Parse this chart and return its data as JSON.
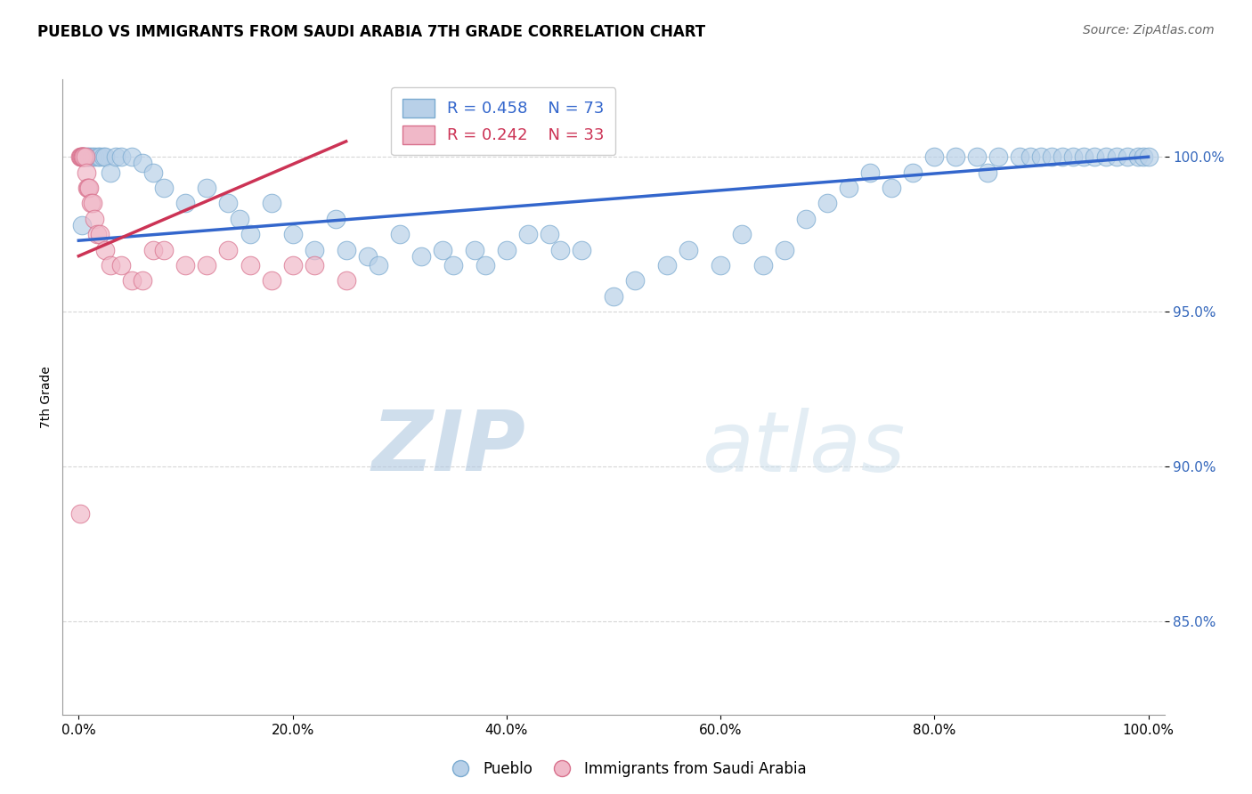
{
  "title": "PUEBLO VS IMMIGRANTS FROM SAUDI ARABIA 7TH GRADE CORRELATION CHART",
  "source": "Source: ZipAtlas.com",
  "ylabel": "7th Grade",
  "watermark_zip": "ZIP",
  "watermark_atlas": "atlas",
  "r_blue": 0.458,
  "n_blue": 73,
  "r_pink": 0.242,
  "n_pink": 33,
  "blue_color": "#b8d0e8",
  "blue_edge": "#7aaad0",
  "pink_color": "#f0b8c8",
  "pink_edge": "#d8708c",
  "trendline_blue": "#3366cc",
  "trendline_pink": "#cc3355",
  "legend_r_blue_color": "#3366cc",
  "legend_r_pink_color": "#cc3355",
  "xlim": [
    -1.5,
    101.5
  ],
  "ylim": [
    82.0,
    102.5
  ],
  "ytick_positions": [
    85.0,
    90.0,
    95.0,
    100.0
  ],
  "xtick_positions": [
    0.0,
    20.0,
    40.0,
    60.0,
    80.0,
    100.0
  ],
  "blue_x": [
    0.3,
    0.5,
    0.8,
    1.0,
    1.2,
    1.5,
    1.8,
    2.0,
    2.3,
    2.5,
    3.0,
    3.5,
    4.0,
    5.0,
    6.0,
    7.0,
    8.0,
    10.0,
    12.0,
    14.0,
    15.0,
    16.0,
    18.0,
    20.0,
    22.0,
    24.0,
    25.0,
    27.0,
    28.0,
    30.0,
    32.0,
    34.0,
    35.0,
    37.0,
    38.0,
    40.0,
    42.0,
    44.0,
    45.0,
    47.0,
    50.0,
    52.0,
    55.0,
    57.0,
    60.0,
    62.0,
    64.0,
    66.0,
    68.0,
    70.0,
    72.0,
    74.0,
    76.0,
    78.0,
    80.0,
    82.0,
    84.0,
    85.0,
    86.0,
    88.0,
    89.0,
    90.0,
    91.0,
    92.0,
    93.0,
    94.0,
    95.0,
    96.0,
    97.0,
    98.0,
    99.0,
    99.5,
    100.0
  ],
  "blue_y": [
    97.8,
    100.0,
    100.0,
    100.0,
    100.0,
    100.0,
    100.0,
    100.0,
    100.0,
    100.0,
    99.5,
    100.0,
    100.0,
    100.0,
    99.8,
    99.5,
    99.0,
    98.5,
    99.0,
    98.5,
    98.0,
    97.5,
    98.5,
    97.5,
    97.0,
    98.0,
    97.0,
    96.8,
    96.5,
    97.5,
    96.8,
    97.0,
    96.5,
    97.0,
    96.5,
    97.0,
    97.5,
    97.5,
    97.0,
    97.0,
    95.5,
    96.0,
    96.5,
    97.0,
    96.5,
    97.5,
    96.5,
    97.0,
    98.0,
    98.5,
    99.0,
    99.5,
    99.0,
    99.5,
    100.0,
    100.0,
    100.0,
    99.5,
    100.0,
    100.0,
    100.0,
    100.0,
    100.0,
    100.0,
    100.0,
    100.0,
    100.0,
    100.0,
    100.0,
    100.0,
    100.0,
    100.0,
    100.0
  ],
  "pink_x": [
    0.1,
    0.2,
    0.25,
    0.3,
    0.35,
    0.4,
    0.5,
    0.6,
    0.7,
    0.8,
    0.9,
    1.0,
    1.1,
    1.3,
    1.5,
    1.7,
    2.0,
    2.5,
    3.0,
    4.0,
    5.0,
    6.0,
    7.0,
    8.0,
    10.0,
    12.0,
    14.0,
    16.0,
    18.0,
    20.0,
    22.0,
    25.0,
    0.15
  ],
  "pink_y": [
    100.0,
    100.0,
    100.0,
    100.0,
    100.0,
    100.0,
    100.0,
    100.0,
    99.5,
    99.0,
    99.0,
    99.0,
    98.5,
    98.5,
    98.0,
    97.5,
    97.5,
    97.0,
    96.5,
    96.5,
    96.0,
    96.0,
    97.0,
    97.0,
    96.5,
    96.5,
    97.0,
    96.5,
    96.0,
    96.5,
    96.5,
    96.0,
    88.5
  ],
  "blue_trend_x": [
    0.0,
    100.0
  ],
  "blue_trend_y": [
    97.3,
    100.0
  ],
  "pink_trend_x": [
    0.0,
    25.0
  ],
  "pink_trend_y": [
    96.8,
    100.5
  ]
}
